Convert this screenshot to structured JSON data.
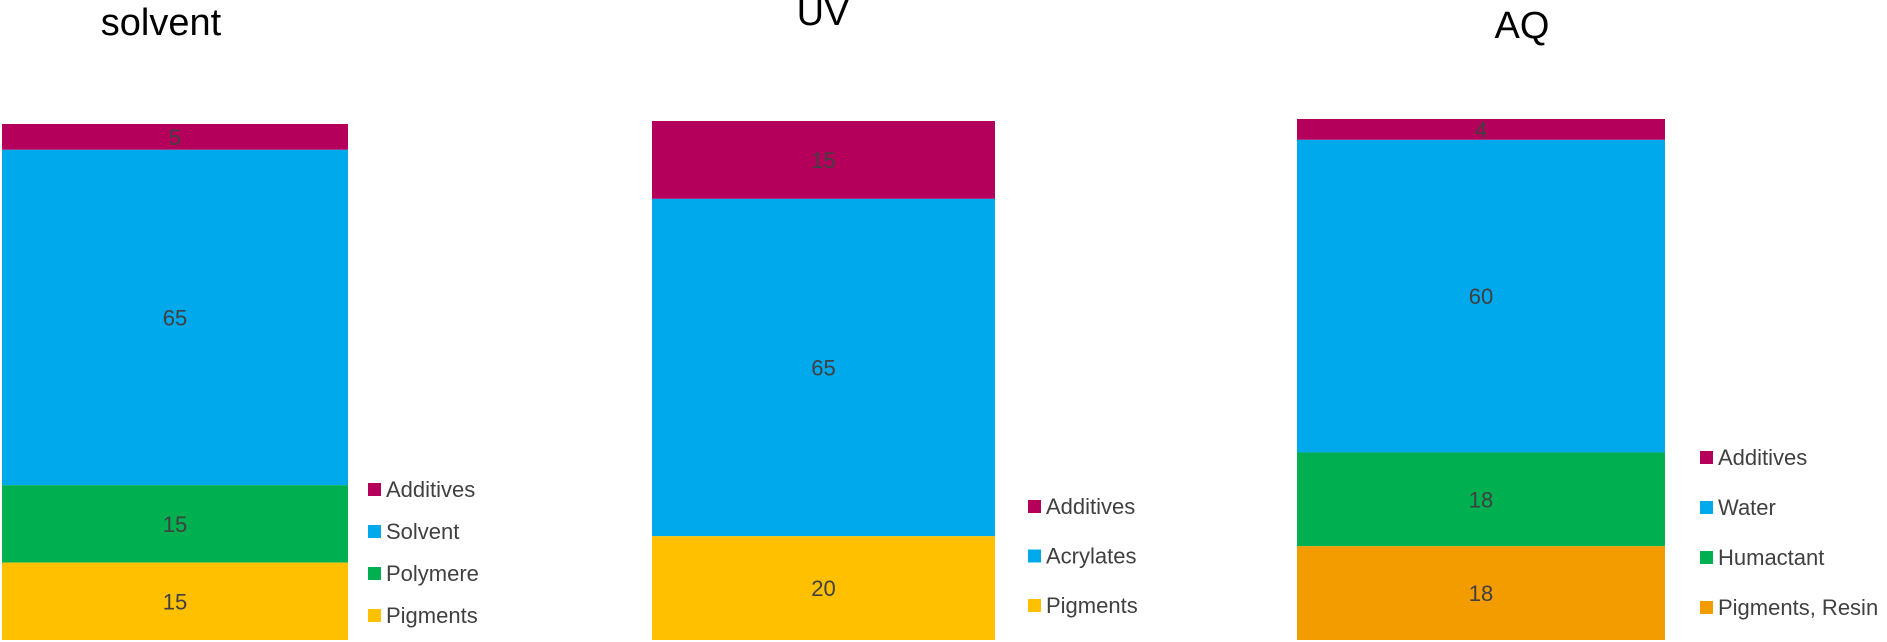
{
  "chart_data": [
    {
      "type": "bar",
      "stacked": true,
      "title": "solvent",
      "categories": [
        ""
      ],
      "series": [
        {
          "name": "Additives",
          "values": [
            5
          ],
          "color": "#B5005B"
        },
        {
          "name": "Solvent",
          "values": [
            65
          ],
          "color": "#00A8EC"
        },
        {
          "name": "Polymere",
          "values": [
            15
          ],
          "color": "#00AF50"
        },
        {
          "name": "Pigments",
          "values": [
            15
          ],
          "color": "#FFC000"
        }
      ],
      "legend": "right"
    },
    {
      "type": "bar",
      "stacked": true,
      "title": "UV",
      "categories": [
        ""
      ],
      "series": [
        {
          "name": "Additives",
          "values": [
            15
          ],
          "color": "#B5005B"
        },
        {
          "name": "Acrylates",
          "values": [
            65
          ],
          "color": "#00A8EC"
        },
        {
          "name": "Pigments",
          "values": [
            20
          ],
          "color": "#FFC000"
        }
      ],
      "legend": "right"
    },
    {
      "type": "bar",
      "stacked": true,
      "title": "AQ",
      "categories": [
        ""
      ],
      "series": [
        {
          "name": "Additives",
          "values": [
            4
          ],
          "color": "#B5005B"
        },
        {
          "name": "Water",
          "values": [
            60
          ],
          "color": "#00A8EC"
        },
        {
          "name": "Humactant",
          "values": [
            18
          ],
          "color": "#00AF50"
        },
        {
          "name": "Pigments, Resin",
          "values": [
            18
          ],
          "color": "#F39C00"
        }
      ],
      "legend": "right"
    }
  ]
}
